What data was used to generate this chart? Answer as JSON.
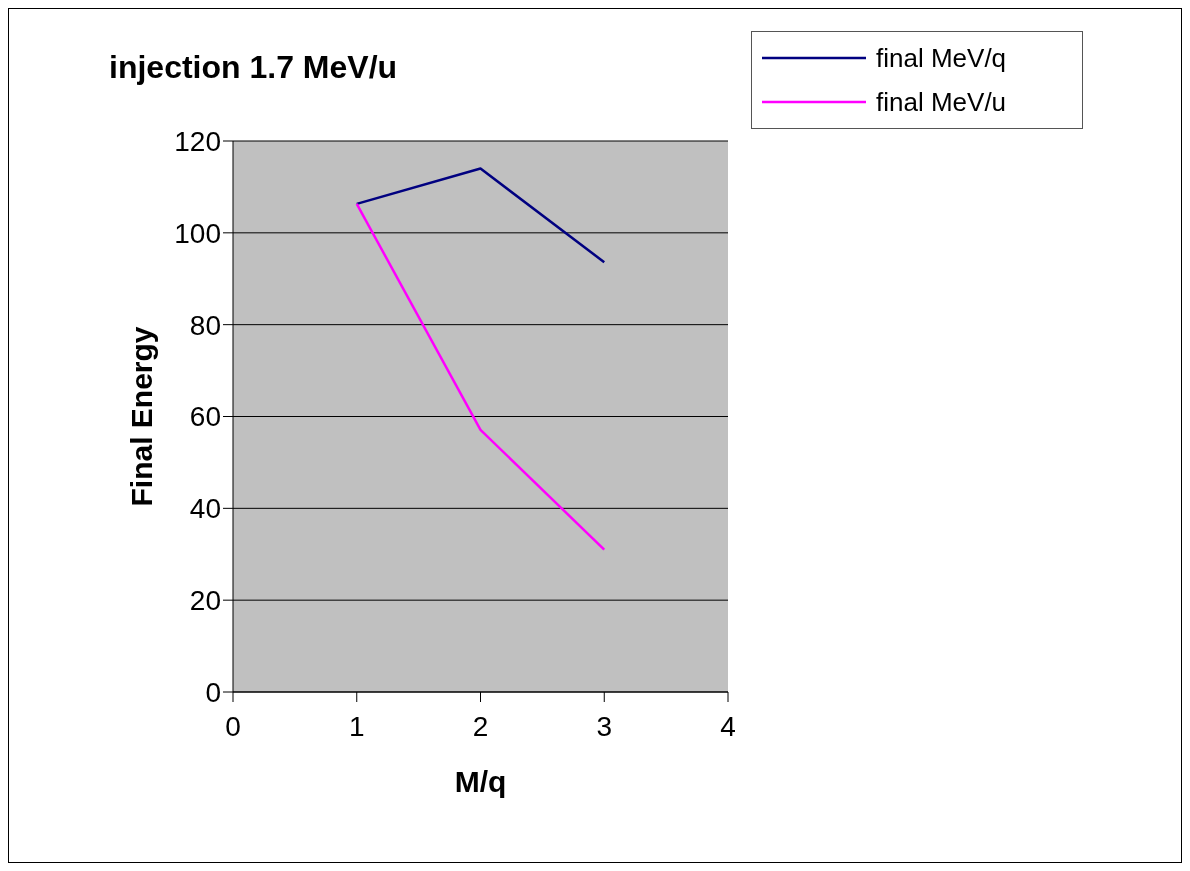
{
  "chart_data": {
    "type": "line",
    "title": "injection 1.7 MeV/u",
    "xlabel": "M/q",
    "ylabel": "Final Energy",
    "x": [
      1,
      2,
      3
    ],
    "series": [
      {
        "name": "final MeV/q",
        "color": "#000080",
        "values": [
          106.3,
          114,
          93.6
        ]
      },
      {
        "name": "final MeV/u",
        "color": "#ff00ff",
        "values": [
          106.3,
          57.1,
          31
        ]
      }
    ],
    "xlim": [
      0,
      4
    ],
    "xticks": [
      0,
      1,
      2,
      3,
      4
    ],
    "ylim": [
      0,
      120
    ],
    "yticks": [
      0,
      20,
      40,
      60,
      80,
      100,
      120
    ],
    "grid": "y",
    "legend": "top right",
    "marker": "none",
    "line_style": "solid"
  }
}
